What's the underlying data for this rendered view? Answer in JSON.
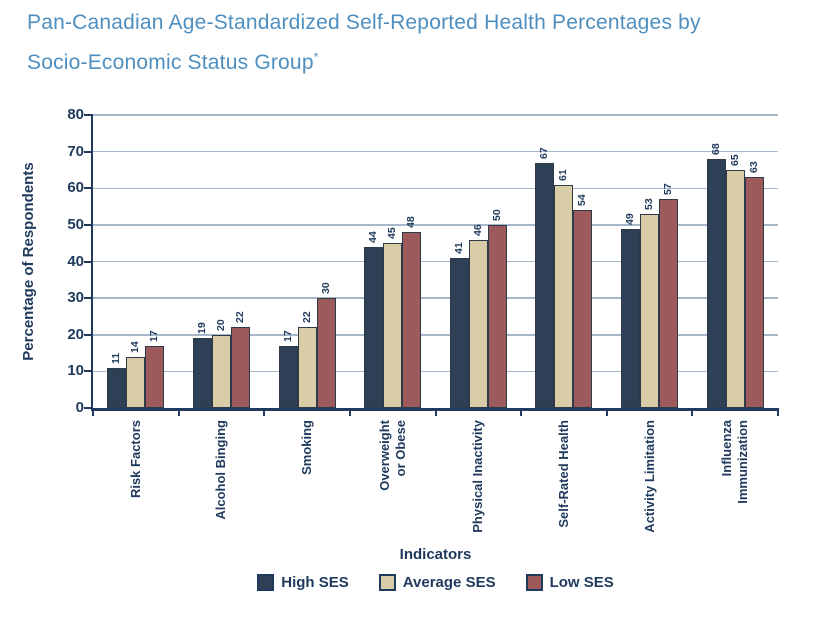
{
  "title": {
    "line1": "Pan-Canadian Age-Standardized Self-Reported Health Percentages by",
    "line2": "Socio-Economic Status Group",
    "superscript": "*"
  },
  "colors": {
    "title": "#4e8fc0",
    "axis_text": "#1f3a5c",
    "grid": "#a6b7ca",
    "bar_edge": "#2e3a4a",
    "background": "#ffffff"
  },
  "chart_data": {
    "type": "bar",
    "title": "Pan-Canadian Age-Standardized Self-Reported Health Percentages by Socio-Economic Status Group*",
    "categories": [
      "Risk Factors",
      "Alcohol Binging",
      "Smoking",
      "Overweight\nor Obese",
      "Physical Inactivity",
      "Self-Rated Health",
      "Activity Limitation",
      "Influenza\nImmunization"
    ],
    "series": [
      {
        "name": "High SES",
        "color": "#2d4055",
        "values": [
          11,
          19,
          17,
          44,
          41,
          67,
          49,
          68
        ]
      },
      {
        "name": "Average SES",
        "color": "#d9cda8",
        "values": [
          14,
          20,
          22,
          45,
          46,
          61,
          53,
          65
        ]
      },
      {
        "name": "Low SES",
        "color": "#9c5a5a",
        "values": [
          17,
          22,
          30,
          48,
          50,
          54,
          57,
          63
        ]
      }
    ],
    "xlabel": "Indicators",
    "ylabel": "Percentage of Respondents",
    "ylim": [
      0,
      80
    ],
    "ytick_interval": 10,
    "grid": true,
    "legend_position": "bottom",
    "value_labels_rotated": true,
    "category_labels_rotated": true
  }
}
